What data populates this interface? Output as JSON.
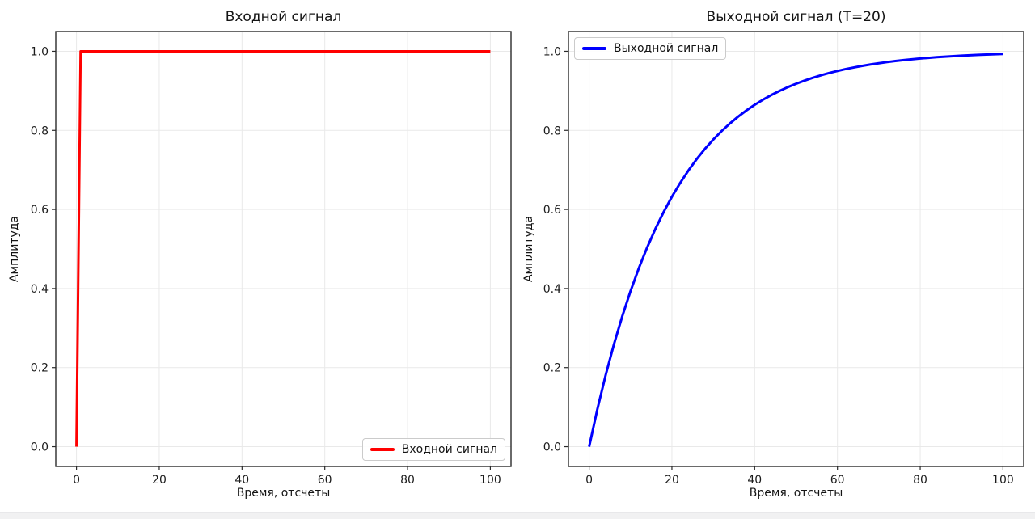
{
  "style": {
    "background": "#ffffff",
    "grid_color": "#e9e9e9",
    "spine_color": "#2a2a2a",
    "tick_color": "#2a2a2a",
    "text_color": "#141414",
    "bottom_bar_color": "#f1f1f2",
    "input_signal_color": "#ff0000",
    "output_signal_color": "#0000ff"
  },
  "chart_data": [
    {
      "type": "line",
      "title": "Входной сигнал",
      "xlabel": "Время, отсчеты",
      "ylabel": "Амплитуда",
      "xlim": [
        -5,
        105
      ],
      "ylim": [
        -0.05,
        1.05
      ],
      "xticks": [
        0,
        20,
        40,
        60,
        80,
        100
      ],
      "yticks": [
        0.0,
        0.2,
        0.4,
        0.6,
        0.8,
        1.0
      ],
      "xtick_labels": [
        "0",
        "20",
        "40",
        "60",
        "80",
        "100"
      ],
      "ytick_labels": [
        "0.0",
        "0.2",
        "0.4",
        "0.6",
        "0.8",
        "1.0"
      ],
      "grid": true,
      "legend": {
        "position": "lower-right",
        "entries": [
          {
            "label": "Входной сигнал",
            "color": "#ff0000"
          }
        ]
      },
      "series": [
        {
          "name": "Входной сигнал",
          "color": "#ff0000",
          "linewidth": 3,
          "x": [
            0,
            1,
            100
          ],
          "y": [
            0,
            1,
            1
          ]
        }
      ]
    },
    {
      "type": "line",
      "title": "Выходной сигнал (T=20)",
      "xlabel": "Время, отсчеты",
      "ylabel": "Амплитуда",
      "xlim": [
        -5,
        105
      ],
      "ylim": [
        -0.05,
        1.05
      ],
      "xticks": [
        0,
        20,
        40,
        60,
        80,
        100
      ],
      "yticks": [
        0.0,
        0.2,
        0.4,
        0.6,
        0.8,
        1.0
      ],
      "xtick_labels": [
        "0",
        "20",
        "40",
        "60",
        "80",
        "100"
      ],
      "ytick_labels": [
        "0.0",
        "0.2",
        "0.4",
        "0.6",
        "0.8",
        "1.0"
      ],
      "grid": true,
      "time_constant": 20,
      "legend": {
        "position": "upper-left",
        "entries": [
          {
            "label": "Выходной сигнал",
            "color": "#0000ff"
          }
        ]
      },
      "series": [
        {
          "name": "Выходной сигнал",
          "color": "#0000ff",
          "linewidth": 3,
          "x": [
            0,
            2,
            4,
            6,
            8,
            10,
            12,
            14,
            16,
            18,
            20,
            22,
            24,
            26,
            28,
            30,
            32,
            34,
            36,
            38,
            40,
            42,
            44,
            46,
            48,
            50,
            52,
            54,
            56,
            58,
            60,
            62,
            64,
            66,
            68,
            70,
            72,
            74,
            76,
            78,
            80,
            82,
            84,
            86,
            88,
            90,
            92,
            94,
            96,
            98,
            100
          ],
          "y": [
            0.0,
            0.0952,
            0.1813,
            0.2592,
            0.3297,
            0.3935,
            0.4512,
            0.5034,
            0.5507,
            0.5934,
            0.6321,
            0.6671,
            0.6988,
            0.7275,
            0.7534,
            0.7769,
            0.7981,
            0.8173,
            0.8347,
            0.8504,
            0.8647,
            0.8775,
            0.8892,
            0.8997,
            0.9093,
            0.9179,
            0.9257,
            0.9328,
            0.9392,
            0.945,
            0.9502,
            0.955,
            0.9592,
            0.9631,
            0.9666,
            0.9698,
            0.9727,
            0.9753,
            0.9776,
            0.9798,
            0.9817,
            0.9834,
            0.985,
            0.9864,
            0.9877,
            0.9889,
            0.9899,
            0.9909,
            0.9918,
            0.9926,
            0.9933
          ]
        }
      ]
    }
  ]
}
